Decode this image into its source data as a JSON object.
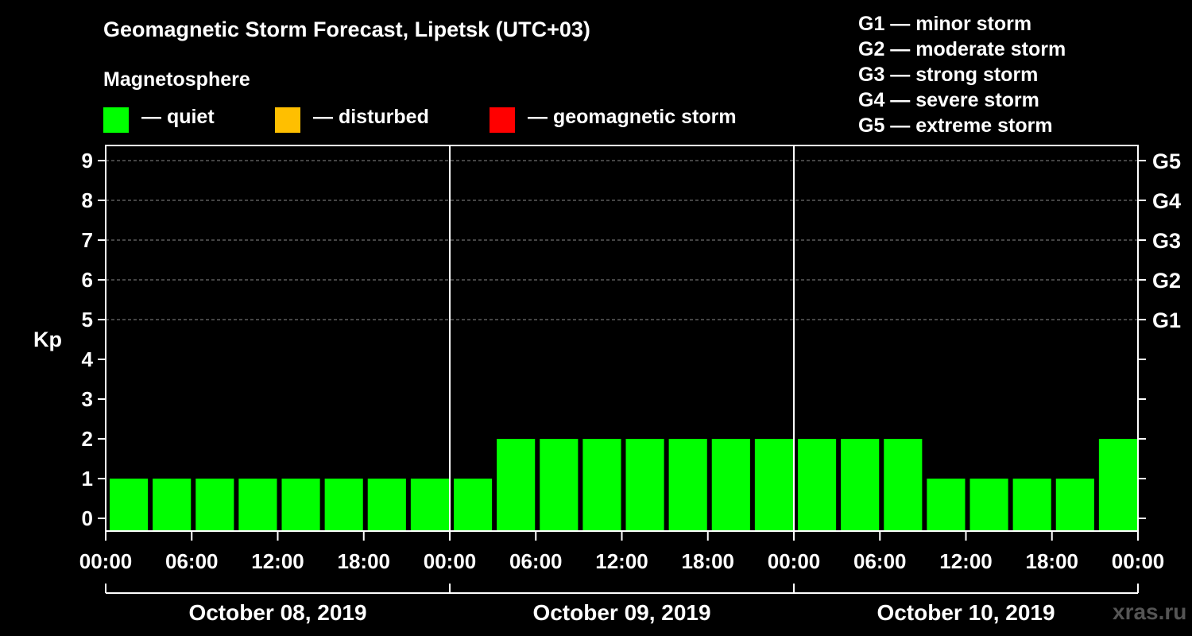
{
  "header": {
    "title": "Geomagnetic Storm Forecast, Lipetsk (UTC+03)",
    "subtitle": "Magnetosphere"
  },
  "legend": [
    {
      "color": "#00ff00",
      "label": "— quiet"
    },
    {
      "color": "#ffbf00",
      "label": "— disturbed"
    },
    {
      "color": "#ff0000",
      "label": "— geomagnetic storm"
    }
  ],
  "storm_scale": [
    "G1 — minor storm",
    "G2 — moderate storm",
    "G3 — strong storm",
    "G4 — severe storm",
    "G5 — extreme storm"
  ],
  "watermark": "xras.ru",
  "chart_data": {
    "type": "bar",
    "ylabel": "Kp",
    "ylim": [
      0,
      9
    ],
    "y_ticks": [
      "0",
      "1",
      "2",
      "3",
      "4",
      "5",
      "6",
      "7",
      "8",
      "9"
    ],
    "right_axis_labels": [
      {
        "kp": 5,
        "label": "G1"
      },
      {
        "kp": 6,
        "label": "G2"
      },
      {
        "kp": 7,
        "label": "G3"
      },
      {
        "kp": 8,
        "label": "G4"
      },
      {
        "kp": 9,
        "label": "G5"
      }
    ],
    "grid_dashed_at": [
      5,
      6,
      7,
      8,
      9
    ],
    "x_tick_labels": [
      "00:00",
      "06:00",
      "12:00",
      "18:00",
      "00:00",
      "06:00",
      "12:00",
      "18:00",
      "00:00",
      "06:00",
      "12:00",
      "18:00",
      "00:00"
    ],
    "days": [
      "October 08, 2019",
      "October 09, 2019",
      "October 10, 2019"
    ],
    "interval_hours": 3,
    "series": [
      {
        "name": "Kp",
        "values": [
          1,
          1,
          1,
          1,
          1,
          1,
          1,
          1,
          1,
          2,
          2,
          2,
          2,
          2,
          2,
          2,
          2,
          2,
          2,
          1,
          1,
          1,
          1,
          2
        ]
      }
    ],
    "bar_color": "#00ff00"
  }
}
